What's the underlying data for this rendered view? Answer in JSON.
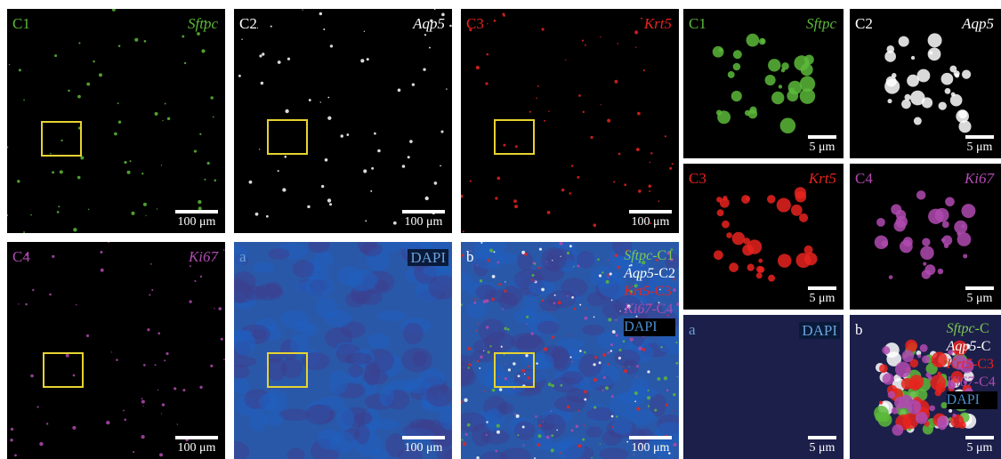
{
  "large_panels": [
    {
      "channel": "C1",
      "marker": "Sftpc",
      "scale_bar": "100 μm"
    },
    {
      "channel": "C2",
      "marker": "Aqp5",
      "scale_bar": "100 μm"
    },
    {
      "channel": "C3",
      "marker": "Krt5",
      "scale_bar": "100 μm"
    },
    {
      "channel": "C4",
      "marker": "Ki67",
      "scale_bar": "100 μm"
    },
    {
      "channel": "a",
      "marker": "DAPI",
      "scale_bar": "100 μm"
    },
    {
      "channel": "b",
      "legend": [
        {
          "gene": "Sftpc",
          "suffix": "-C1"
        },
        {
          "gene": "Aqp5",
          "suffix": "-C2"
        },
        {
          "gene": "Krt5",
          "suffix": "-C3"
        },
        {
          "gene": "Ki67",
          "suffix": "-C4"
        },
        {
          "gene": "DAPI"
        }
      ],
      "scale_bar": "100 μm"
    }
  ],
  "small_panels": [
    {
      "channel": "C1",
      "marker": "Sftpc",
      "scale_bar": "5 μm"
    },
    {
      "channel": "C2",
      "marker": "Aqp5",
      "scale_bar": "5 μm"
    },
    {
      "channel": "C3",
      "marker": "Krt5",
      "scale_bar": "5 μm"
    },
    {
      "channel": "C4",
      "marker": "Ki67",
      "scale_bar": "5 μm"
    },
    {
      "channel": "a",
      "marker": "DAPI",
      "scale_bar": "5 μm"
    },
    {
      "channel": "b",
      "legend": [
        {
          "gene": "Sftpc",
          "suffix": "-C"
        },
        {
          "gene": "Aqp5",
          "suffix": "-C"
        },
        {
          "gene": "Krt5",
          "suffix": "-C3"
        },
        {
          "gene": "Ki67",
          "suffix": "-C4"
        },
        {
          "gene": "DAPI"
        }
      ],
      "scale_bar": "5 μm"
    }
  ]
}
